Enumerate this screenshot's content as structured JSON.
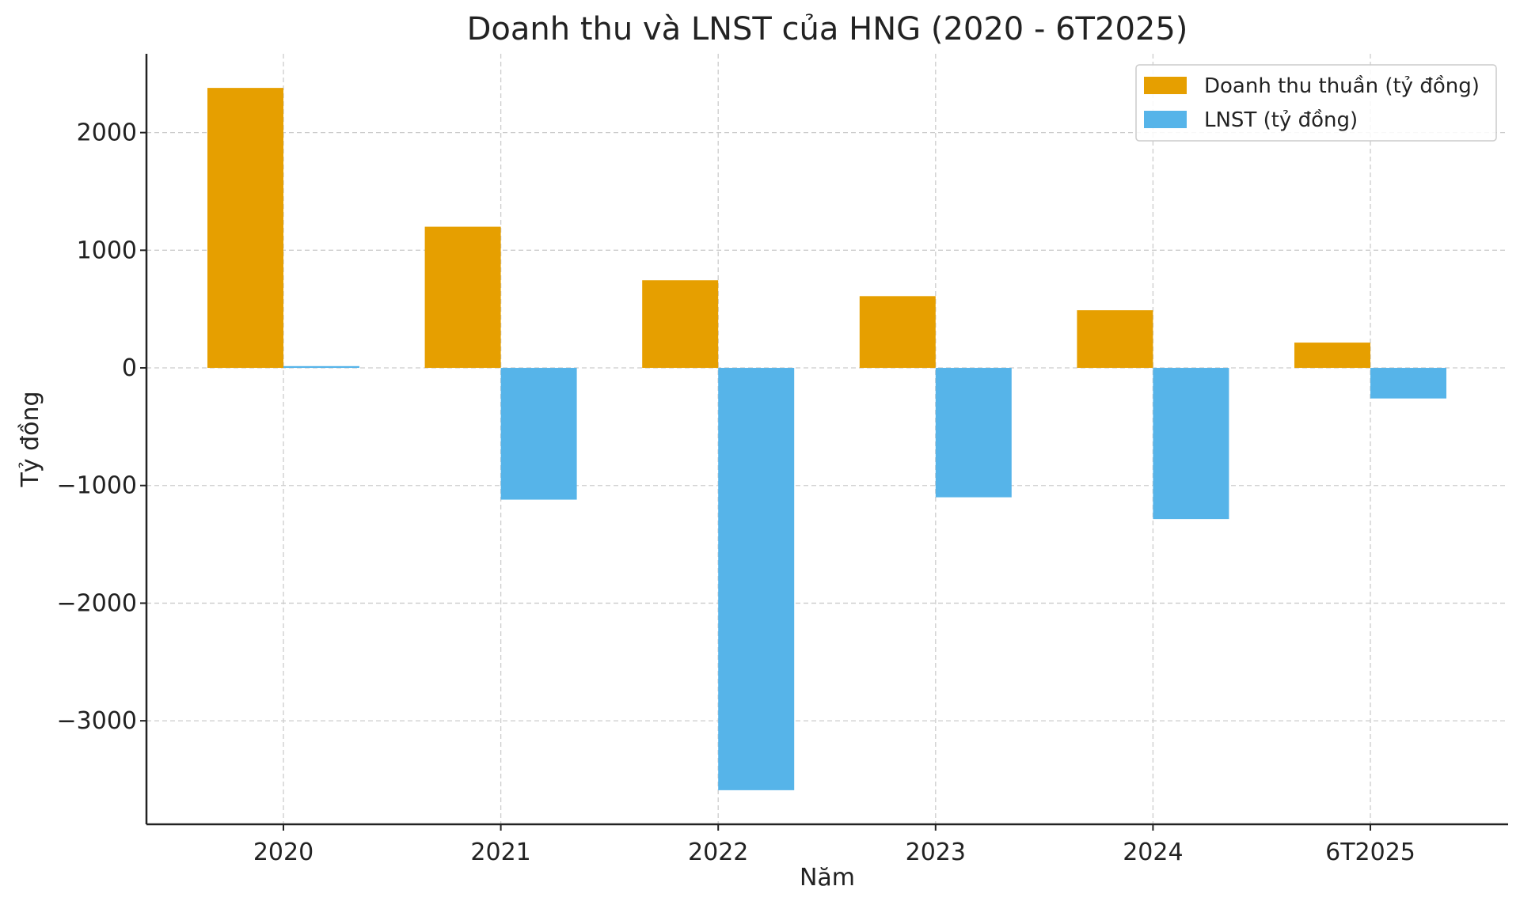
{
  "chart_data": {
    "type": "bar",
    "title": "Doanh thu và LNST của HNG (2020 - 6T2025)",
    "xlabel": "Năm",
    "ylabel": "Tỷ đồng",
    "categories": [
      "2020",
      "2021",
      "2022",
      "2023",
      "2024",
      "6T2025"
    ],
    "series": [
      {
        "name": "Doanh thu thuần (tỷ đồng)",
        "color": "#E69F00",
        "values": [
          2380,
          1200,
          745,
          610,
          490,
          215
        ]
      },
      {
        "name": "LNST (tỷ đồng)",
        "color": "#56B4E9",
        "values": [
          15,
          -1120,
          -3590,
          -1100,
          -1285,
          -260
        ]
      }
    ],
    "ylim": [
      -3880,
      2670
    ],
    "yticks": [
      -3000,
      -2000,
      -1000,
      0,
      1000,
      2000
    ],
    "ytick_labels": [
      "−3000",
      "−2000",
      "−1000",
      "0",
      "1000",
      "2000"
    ],
    "grid": true,
    "legend_position": "top-right"
  }
}
